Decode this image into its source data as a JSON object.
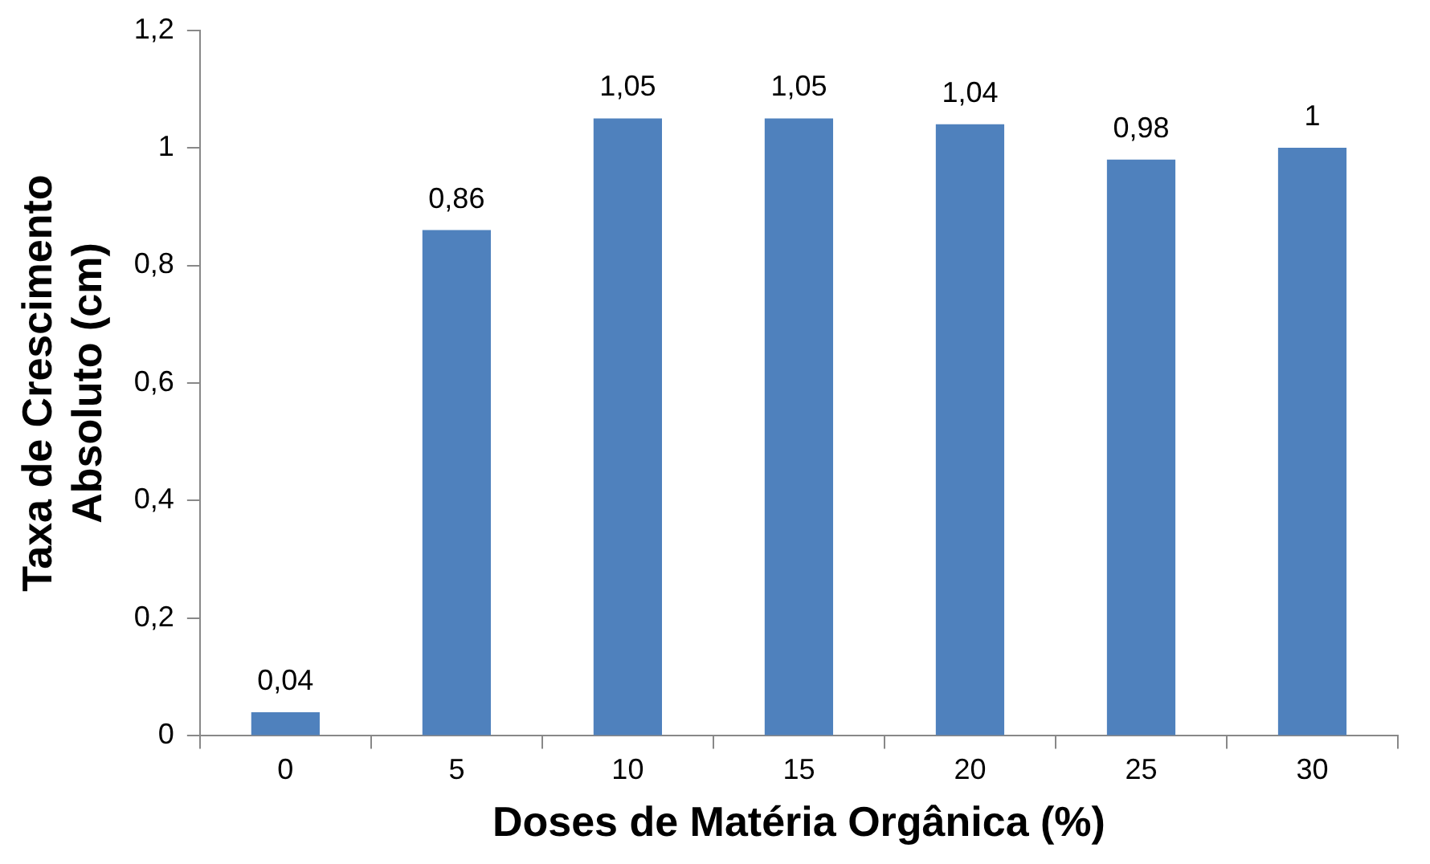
{
  "chart_data": {
    "type": "bar",
    "xlabel": "Doses de Matéria Orgânica (%)",
    "ylabel": "Taxa de Crescimento\nAbsoluto (cm)",
    "categories": [
      "0",
      "5",
      "10",
      "15",
      "20",
      "25",
      "30"
    ],
    "values": [
      0.04,
      0.86,
      1.05,
      1.05,
      1.04,
      0.98,
      1
    ],
    "value_labels": [
      "0,04",
      "0,86",
      "1,05",
      "1,05",
      "1,04",
      "0,98",
      "1"
    ],
    "color": "#4f81bd",
    "ylim": [
      0,
      1.2
    ],
    "yticks": [
      0,
      {
        "value": 0.2,
        "label": "0,2"
      },
      {
        "value": 0.4,
        "label": "0,4"
      },
      {
        "value": 0.6,
        "label": "0,6"
      },
      {
        "value": 0.8,
        "label": "0,8"
      },
      1,
      {
        "value": 1.2,
        "label": "1,2"
      }
    ],
    "grid": false,
    "legend": false
  }
}
